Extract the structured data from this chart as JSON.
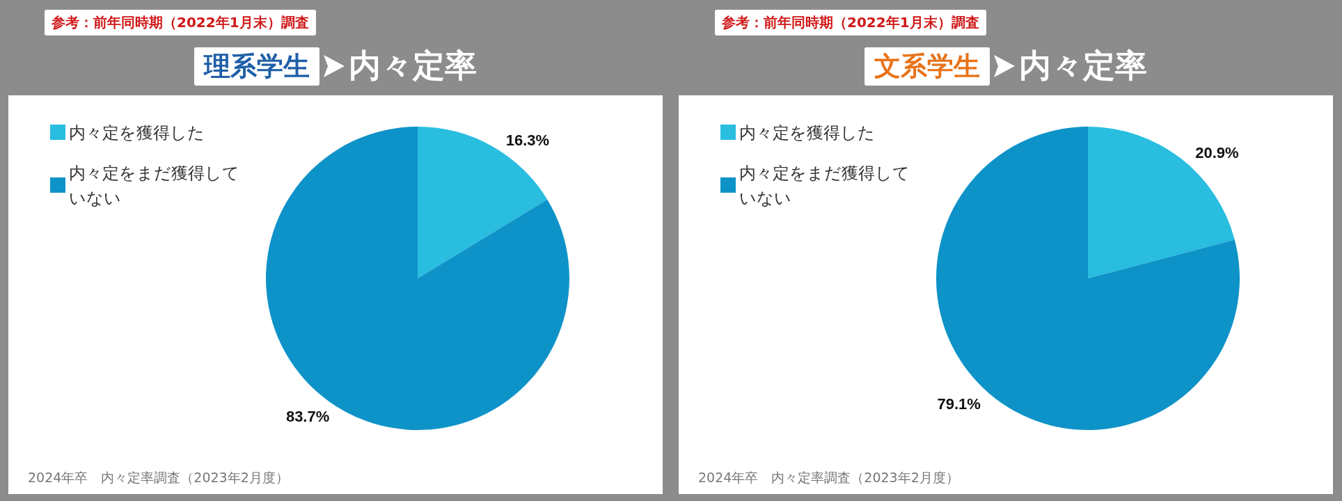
{
  "chart_data": [
    {
      "type": "pie",
      "title": "理系学生",
      "subtitle": "内々定率",
      "categories": [
        "内々定を獲得した",
        "内々定をまだ獲得していない"
      ],
      "values": [
        16.3,
        83.7
      ],
      "value_labels": [
        "16.3%",
        "83.7%"
      ],
      "colors": [
        "#29bde0",
        "#0e93c8"
      ],
      "legend": "top left",
      "annotations": [
        "参考：前年同時期（2022年1月末）調査",
        "2024年卒　内々定率調査（2023年2月度）"
      ]
    },
    {
      "type": "pie",
      "title": "文系学生",
      "subtitle": "内々定率",
      "categories": [
        "内々定を獲得した",
        "内々定をまだ獲得していない"
      ],
      "values": [
        20.9,
        79.1
      ],
      "value_labels": [
        "20.9%",
        "79.1%"
      ],
      "colors": [
        "#29bde0",
        "#0e93c8"
      ],
      "legend": "top left",
      "annotations": [
        "参考：前年同時期（2022年1月末）調査",
        "2024年卒　内々定率調査（2023年2月度）"
      ]
    }
  ]
}
